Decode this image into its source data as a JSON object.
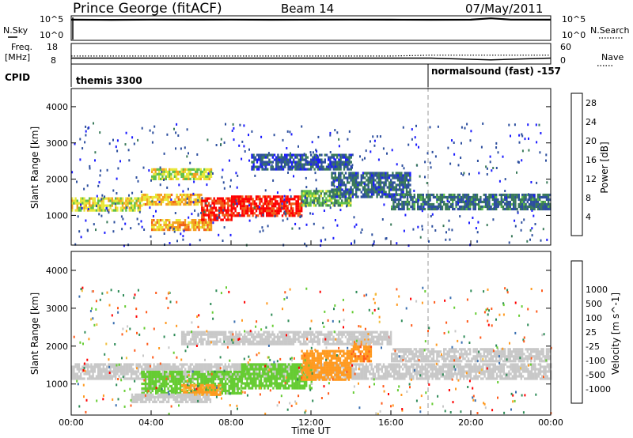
{
  "header": {
    "station": "Prince George (fitACF)",
    "beam": "Beam 14",
    "date": "07/May/2011"
  },
  "summary_panel": {
    "left_label_top": "N.Sky",
    "left_tick_high": "10^5",
    "left_tick_low": "10^0",
    "right_tick_high": "10^5",
    "right_tick_low": "10^0",
    "right_label": "N.Search",
    "freq_label_1": "Freq.",
    "freq_label_2": "[MHz]",
    "freq_tick_high": "18",
    "freq_tick_low": "8",
    "nave_tick_high": "60",
    "nave_tick_low": "0",
    "nave_label": "Nave",
    "cpid_label": "CPID",
    "cpid_mode_1": "themis 3300",
    "cpid_mode_2": "normalsound (fast) -157"
  },
  "colors": {
    "power_scale": [
      "#1a1aff",
      "#2d4f9e",
      "#3a7a5a",
      "#5fbf4a",
      "#e8e83a",
      "#f5a020",
      "#f0601a",
      "#ff0000"
    ],
    "velocity_scale": [
      "#ff0000",
      "#ff5a1a",
      "#ff9a20",
      "#f0c040",
      "#c8c8c8",
      "#c8c8c8",
      "#66cc33",
      "#2e8b57",
      "#3a6fb0",
      "#1a3aa0"
    ],
    "ground_scatter": "#c8c8c8"
  },
  "chart_data": [
    {
      "type": "line",
      "title": "N.Sky / N.Search",
      "x": [
        "00:00",
        "02:00",
        "04:00",
        "06:00",
        "08:00",
        "10:00",
        "12:00",
        "14:00",
        "16:00",
        "18:00",
        "20:00",
        "21:00",
        "22:00",
        "24:00"
      ],
      "series": [
        {
          "name": "N.Sky",
          "values": [
            30000,
            28000,
            32000,
            30000,
            31000,
            29000,
            30000,
            31000,
            30000,
            29000,
            30000,
            60000,
            32000,
            30000
          ]
        }
      ],
      "ylim": [
        1,
        100000
      ],
      "yscale": "log"
    },
    {
      "type": "line",
      "title": "Freq. / Nave",
      "x": [
        "00:00",
        "04:00",
        "08:00",
        "12:00",
        "16:00",
        "18:00",
        "21:00",
        "24:00"
      ],
      "series": [
        {
          "name": "Freq.",
          "values": [
            10.5,
            10.5,
            10.5,
            10.5,
            10.5,
            10.5,
            9.5,
            10.5
          ]
        },
        {
          "name": "Nave",
          "values": [
            22,
            22,
            22,
            22,
            22,
            25,
            25,
            25
          ]
        }
      ],
      "ylim_left": [
        8,
        18
      ],
      "ylim_right": [
        0,
        60
      ]
    },
    {
      "type": "heatmap",
      "title": "",
      "xlabel": "Time UT",
      "ylabel": "Slant Range [km]",
      "xticks": [
        "00:00",
        "04:00",
        "08:00",
        "12:00",
        "16:00",
        "20:00",
        "00:00"
      ],
      "yticks": [
        1000,
        2000,
        3000,
        4000
      ],
      "xlim_hours": [
        0,
        24
      ],
      "ylim_km": [
        180,
        4500
      ],
      "colorbar": {
        "label": "Power [dB]",
        "ticks": [
          4,
          8,
          12,
          16,
          20,
          24,
          28
        ],
        "range": [
          0,
          30
        ]
      },
      "bands": [
        {
          "t0": 0.0,
          "t1": 3.5,
          "r0": 1150,
          "r1": 1500,
          "level": 17
        },
        {
          "t0": 3.5,
          "t1": 6.5,
          "r0": 1300,
          "r1": 1600,
          "level": 19
        },
        {
          "t0": 4.0,
          "t1": 7.0,
          "r0": 600,
          "r1": 900,
          "level": 21
        },
        {
          "t0": 6.5,
          "t1": 8.0,
          "r0": 900,
          "r1": 1500,
          "level": 27
        },
        {
          "t0": 8.0,
          "t1": 11.5,
          "r0": 1000,
          "r1": 1550,
          "level": 28
        },
        {
          "t0": 11.5,
          "t1": 14.0,
          "r0": 1300,
          "r1": 1700,
          "level": 12
        },
        {
          "t0": 13.0,
          "t1": 17.0,
          "r0": 1500,
          "r1": 2200,
          "level": 7
        },
        {
          "t0": 16.0,
          "t1": 24.0,
          "r0": 1200,
          "r1": 1600,
          "level": 8
        },
        {
          "t0": 4.0,
          "t1": 7.0,
          "r0": 2000,
          "r1": 2300,
          "level": 16
        },
        {
          "t0": 9.0,
          "t1": 14.0,
          "r0": 2300,
          "r1": 2700,
          "level": 6
        }
      ]
    },
    {
      "type": "heatmap",
      "title": "",
      "xlabel": "Time UT",
      "ylabel": "Slant Range [km]",
      "xticks": [
        "00:00",
        "04:00",
        "08:00",
        "12:00",
        "16:00",
        "20:00",
        "00:00"
      ],
      "yticks": [
        1000,
        2000,
        3000,
        4000
      ],
      "xlim_hours": [
        0,
        24
      ],
      "ylim_km": [
        180,
        4500
      ],
      "colorbar": {
        "label": "Velocity [m s^-1]",
        "ticks": [
          -1000,
          -500,
          -100,
          -25,
          25,
          100,
          500,
          1000
        ]
      },
      "bands": [
        {
          "t0": 0.0,
          "t1": 24.0,
          "r0": 1150,
          "r1": 1550,
          "vel": 0
        },
        {
          "t0": 3.5,
          "t1": 8.5,
          "r0": 750,
          "r1": 1350,
          "vel": 150
        },
        {
          "t0": 8.5,
          "t1": 12.0,
          "r0": 900,
          "r1": 1550,
          "vel": 200
        },
        {
          "t0": 5.5,
          "t1": 7.5,
          "r0": 700,
          "r1": 1000,
          "vel": -150
        },
        {
          "t0": 11.5,
          "t1": 14.0,
          "r0": 1100,
          "r1": 1900,
          "vel": -200
        },
        {
          "t0": 14.0,
          "t1": 15.0,
          "r0": 1600,
          "r1": 2200,
          "vel": -400
        },
        {
          "t0": 3.0,
          "t1": 7.0,
          "r0": 500,
          "r1": 750,
          "vel": 0
        },
        {
          "t0": 5.5,
          "t1": 16.0,
          "r0": 2050,
          "r1": 2400,
          "vel": 0
        },
        {
          "t0": 16.0,
          "t1": 24.0,
          "r0": 1600,
          "r1": 1950,
          "vel": 0
        }
      ]
    }
  ]
}
